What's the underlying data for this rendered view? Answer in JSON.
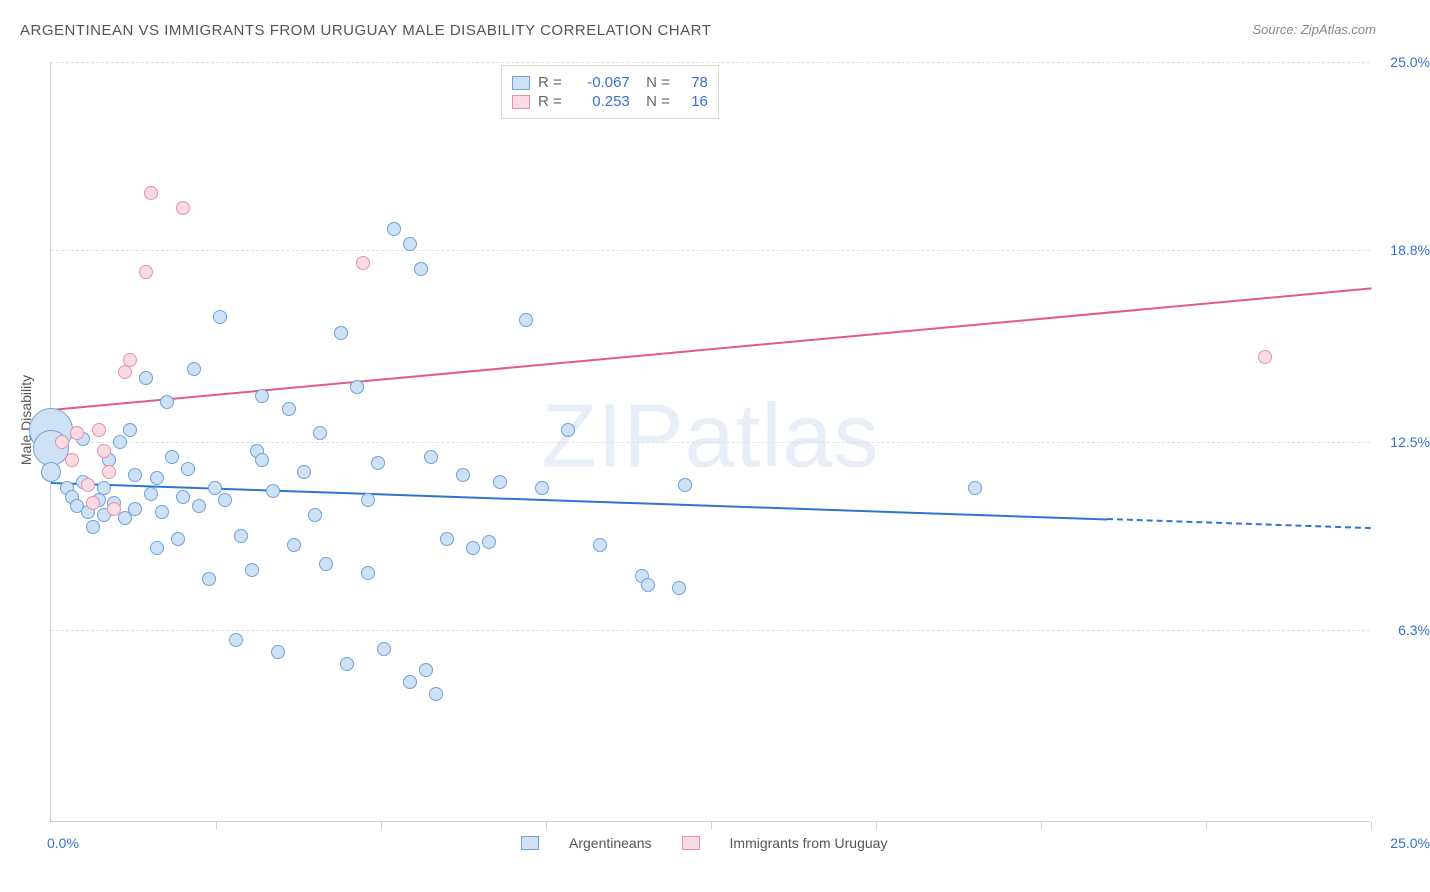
{
  "title": "ARGENTINEAN VS IMMIGRANTS FROM URUGUAY MALE DISABILITY CORRELATION CHART",
  "source_label": "Source: ",
  "source_name": "ZipAtlas.com",
  "watermark": "ZIPatlas",
  "y_axis_label": "Male Disability",
  "chart": {
    "type": "scatter",
    "background_color": "#ffffff",
    "grid_color": "#e0e0e0",
    "axis_color": "#d0d0d0",
    "tick_label_color": "#3b6fc9",
    "xlim": [
      0,
      25
    ],
    "ylim": [
      0,
      25
    ],
    "x_start_label": "0.0%",
    "x_end_label": "25.0%",
    "ytick_labels": [
      "6.3%",
      "12.5%",
      "18.8%",
      "25.0%"
    ],
    "ytick_values": [
      6.3,
      12.5,
      18.8,
      25.0
    ],
    "xtick_count": 9,
    "series": [
      {
        "name": "Argentineans",
        "fill": "#cfe1f5",
        "stroke": "#6ea3de",
        "r_value": "-0.067",
        "n_value": "78",
        "trend": {
          "y_start": 11.2,
          "y_end": 9.7,
          "color": "#2e74d0",
          "dash_after_x": 20.0
        },
        "points": [
          {
            "x": 0.0,
            "y": 12.9,
            "r": 22
          },
          {
            "x": 0.0,
            "y": 12.3,
            "r": 18
          },
          {
            "x": 0.0,
            "y": 11.5,
            "r": 10
          },
          {
            "x": 0.3,
            "y": 11.0,
            "r": 7
          },
          {
            "x": 0.4,
            "y": 10.7,
            "r": 7
          },
          {
            "x": 0.5,
            "y": 10.4,
            "r": 7
          },
          {
            "x": 0.6,
            "y": 11.2,
            "r": 7
          },
          {
            "x": 0.6,
            "y": 12.6,
            "r": 7
          },
          {
            "x": 0.7,
            "y": 10.2,
            "r": 7
          },
          {
            "x": 0.8,
            "y": 9.7,
            "r": 7
          },
          {
            "x": 0.9,
            "y": 10.6,
            "r": 7
          },
          {
            "x": 1.0,
            "y": 11.0,
            "r": 7
          },
          {
            "x": 1.0,
            "y": 10.1,
            "r": 7
          },
          {
            "x": 1.1,
            "y": 11.9,
            "r": 7
          },
          {
            "x": 1.2,
            "y": 10.5,
            "r": 7
          },
          {
            "x": 1.3,
            "y": 12.5,
            "r": 7
          },
          {
            "x": 1.4,
            "y": 10.0,
            "r": 7
          },
          {
            "x": 1.5,
            "y": 12.9,
            "r": 7
          },
          {
            "x": 1.6,
            "y": 10.3,
            "r": 7
          },
          {
            "x": 1.6,
            "y": 11.4,
            "r": 7
          },
          {
            "x": 1.8,
            "y": 14.6,
            "r": 7
          },
          {
            "x": 1.9,
            "y": 10.8,
            "r": 7
          },
          {
            "x": 2.0,
            "y": 11.3,
            "r": 7
          },
          {
            "x": 2.1,
            "y": 10.2,
            "r": 7
          },
          {
            "x": 2.2,
            "y": 13.8,
            "r": 7
          },
          {
            "x": 2.3,
            "y": 12.0,
            "r": 7
          },
          {
            "x": 2.4,
            "y": 9.3,
            "r": 7
          },
          {
            "x": 2.5,
            "y": 10.7,
            "r": 7
          },
          {
            "x": 2.6,
            "y": 11.6,
            "r": 7
          },
          {
            "x": 2.7,
            "y": 14.9,
            "r": 7
          },
          {
            "x": 2.8,
            "y": 10.4,
            "r": 7
          },
          {
            "x": 3.0,
            "y": 8.0,
            "r": 7
          },
          {
            "x": 3.1,
            "y": 11.0,
            "r": 7
          },
          {
            "x": 3.2,
            "y": 16.6,
            "r": 7
          },
          {
            "x": 3.3,
            "y": 10.6,
            "r": 7
          },
          {
            "x": 3.5,
            "y": 6.0,
            "r": 7
          },
          {
            "x": 3.6,
            "y": 9.4,
            "r": 7
          },
          {
            "x": 3.8,
            "y": 8.3,
            "r": 7
          },
          {
            "x": 3.9,
            "y": 12.2,
            "r": 7
          },
          {
            "x": 4.0,
            "y": 14.0,
            "r": 7
          },
          {
            "x": 4.2,
            "y": 10.9,
            "r": 7
          },
          {
            "x": 4.3,
            "y": 5.6,
            "r": 7
          },
          {
            "x": 4.5,
            "y": 13.6,
            "r": 7
          },
          {
            "x": 4.6,
            "y": 9.1,
            "r": 7
          },
          {
            "x": 4.8,
            "y": 11.5,
            "r": 7
          },
          {
            "x": 5.0,
            "y": 10.1,
            "r": 7
          },
          {
            "x": 5.1,
            "y": 12.8,
            "r": 7
          },
          {
            "x": 5.2,
            "y": 8.5,
            "r": 7
          },
          {
            "x": 5.5,
            "y": 16.1,
            "r": 7
          },
          {
            "x": 5.6,
            "y": 5.2,
            "r": 7
          },
          {
            "x": 5.8,
            "y": 14.3,
            "r": 7
          },
          {
            "x": 6.0,
            "y": 10.6,
            "r": 7
          },
          {
            "x": 6.0,
            "y": 8.2,
            "r": 7
          },
          {
            "x": 6.2,
            "y": 11.8,
            "r": 7
          },
          {
            "x": 6.3,
            "y": 5.7,
            "r": 7
          },
          {
            "x": 6.5,
            "y": 19.5,
            "r": 7
          },
          {
            "x": 6.8,
            "y": 19.0,
            "r": 7
          },
          {
            "x": 6.8,
            "y": 4.6,
            "r": 7
          },
          {
            "x": 7.0,
            "y": 18.2,
            "r": 7
          },
          {
            "x": 7.1,
            "y": 5.0,
            "r": 7
          },
          {
            "x": 7.2,
            "y": 12.0,
            "r": 7
          },
          {
            "x": 7.3,
            "y": 4.2,
            "r": 7
          },
          {
            "x": 7.5,
            "y": 9.3,
            "r": 7
          },
          {
            "x": 7.8,
            "y": 11.4,
            "r": 7
          },
          {
            "x": 8.0,
            "y": 9.0,
            "r": 7
          },
          {
            "x": 8.3,
            "y": 9.2,
            "r": 7
          },
          {
            "x": 8.5,
            "y": 11.2,
            "r": 7
          },
          {
            "x": 9.0,
            "y": 16.5,
            "r": 7
          },
          {
            "x": 9.3,
            "y": 11.0,
            "r": 7
          },
          {
            "x": 9.8,
            "y": 12.9,
            "r": 7
          },
          {
            "x": 10.4,
            "y": 9.1,
            "r": 7
          },
          {
            "x": 11.2,
            "y": 8.1,
            "r": 7
          },
          {
            "x": 11.3,
            "y": 7.8,
            "r": 7
          },
          {
            "x": 11.9,
            "y": 7.7,
            "r": 7
          },
          {
            "x": 12.0,
            "y": 11.1,
            "r": 7
          },
          {
            "x": 17.5,
            "y": 11.0,
            "r": 7
          },
          {
            "x": 4.0,
            "y": 11.9,
            "r": 7
          },
          {
            "x": 2.0,
            "y": 9.0,
            "r": 7
          }
        ]
      },
      {
        "name": "Immigrants from Uruguay",
        "fill": "#f9dbe3",
        "stroke": "#e791ab",
        "r_value": "0.253",
        "n_value": "16",
        "trend": {
          "y_start": 13.6,
          "y_end": 17.6,
          "color": "#e45a87",
          "dash_after_x": 25.0
        },
        "points": [
          {
            "x": 0.2,
            "y": 12.5,
            "r": 7
          },
          {
            "x": 0.4,
            "y": 11.9,
            "r": 7
          },
          {
            "x": 0.5,
            "y": 12.8,
            "r": 7
          },
          {
            "x": 0.7,
            "y": 11.1,
            "r": 7
          },
          {
            "x": 0.8,
            "y": 10.5,
            "r": 7
          },
          {
            "x": 0.9,
            "y": 12.9,
            "r": 7
          },
          {
            "x": 1.0,
            "y": 12.2,
            "r": 7
          },
          {
            "x": 1.2,
            "y": 10.3,
            "r": 7
          },
          {
            "x": 1.4,
            "y": 14.8,
            "r": 7
          },
          {
            "x": 1.5,
            "y": 15.2,
            "r": 7
          },
          {
            "x": 1.8,
            "y": 18.1,
            "r": 7
          },
          {
            "x": 1.9,
            "y": 20.7,
            "r": 7
          },
          {
            "x": 2.5,
            "y": 20.2,
            "r": 7
          },
          {
            "x": 5.9,
            "y": 18.4,
            "r": 7
          },
          {
            "x": 23.0,
            "y": 15.3,
            "r": 7
          },
          {
            "x": 1.1,
            "y": 11.5,
            "r": 7
          }
        ]
      }
    ],
    "legend": {
      "series1_label": "Argentineans",
      "series2_label": "Immigrants from Uruguay"
    }
  }
}
